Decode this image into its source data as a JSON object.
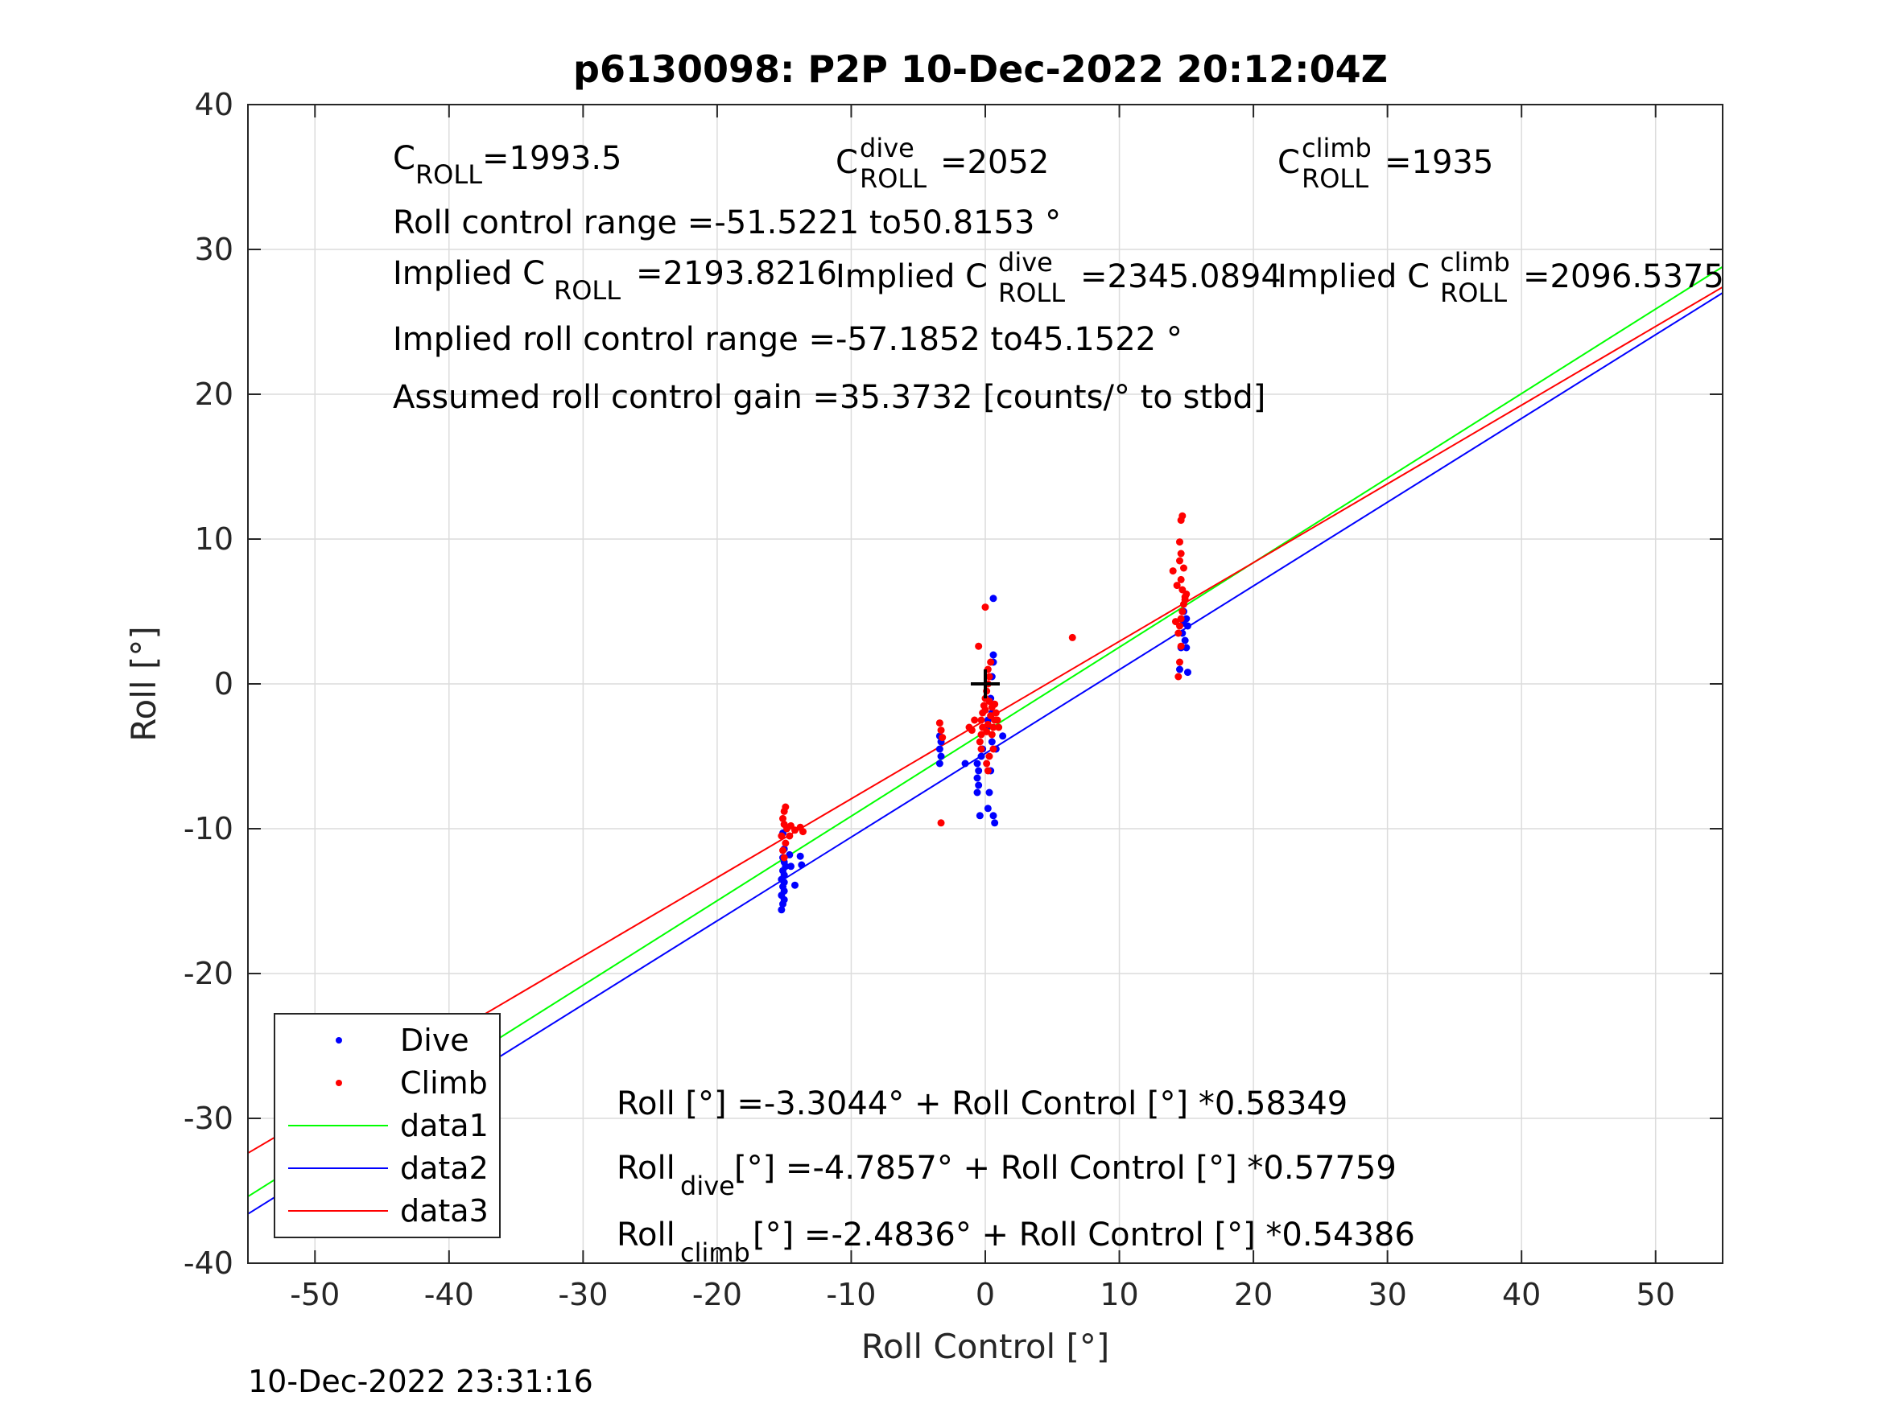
{
  "chart_data": {
    "type": "scatter",
    "title": "p6130098: P2P 10-Dec-2022 20:12:04Z",
    "xlabel": "Roll Control [°]",
    "ylabel": "Roll [°]",
    "xlim": [
      -55,
      55
    ],
    "ylim": [
      -40,
      40
    ],
    "xticks": [
      "-50",
      "-40",
      "-30",
      "-20",
      "-10",
      "0",
      "10",
      "20",
      "30",
      "40",
      "50"
    ],
    "yticks": [
      "40",
      "30",
      "20",
      "10",
      "0",
      "-10",
      "-20",
      "-30",
      "-40"
    ],
    "grid": true,
    "legend_position": "bottom-left",
    "colors": {
      "dive": "#0000ff",
      "climb": "#ff0000",
      "data1": "#00ff00",
      "data2": "#0000ff",
      "data3": "#ff0000",
      "marker": "#000000"
    },
    "series": [
      {
        "name": "Dive",
        "kind": "scatter",
        "color": "#0000ff",
        "points": [
          [
            -15.2,
            -15.6
          ],
          [
            -15.1,
            -15.2
          ],
          [
            -15.0,
            -14.9
          ],
          [
            -15.2,
            -14.6
          ],
          [
            -15.0,
            -14.3
          ],
          [
            -15.1,
            -14.0
          ],
          [
            -15.0,
            -13.7
          ],
          [
            -15.2,
            -13.5
          ],
          [
            -15.0,
            -13.2
          ],
          [
            -15.1,
            -12.9
          ],
          [
            -14.9,
            -12.6
          ],
          [
            -15.0,
            -12.3
          ],
          [
            -15.1,
            -12.0
          ],
          [
            -14.6,
            -11.8
          ],
          [
            -14.5,
            -12.6
          ],
          [
            -14.2,
            -13.9
          ],
          [
            -13.8,
            -11.9
          ],
          [
            -13.7,
            -12.5
          ],
          [
            -15.0,
            -11.4
          ],
          [
            -15.1,
            -10.3
          ],
          [
            -3.4,
            -5.5
          ],
          [
            -3.3,
            -5.0
          ],
          [
            -3.4,
            -4.5
          ],
          [
            -3.3,
            -4.0
          ],
          [
            -3.4,
            -3.6
          ],
          [
            -1.5,
            -5.5
          ],
          [
            -0.6,
            -7.5
          ],
          [
            -0.5,
            -7.0
          ],
          [
            -0.6,
            -6.5
          ],
          [
            -0.5,
            -6.0
          ],
          [
            -0.6,
            -5.5
          ],
          [
            -0.4,
            -9.1
          ],
          [
            -0.3,
            -5.0
          ],
          [
            -0.2,
            -4.5
          ],
          [
            0.2,
            -8.6
          ],
          [
            0.3,
            -7.5
          ],
          [
            0.4,
            -6.0
          ],
          [
            0.5,
            -4.0
          ],
          [
            0.5,
            -2.0
          ],
          [
            0.4,
            -1.0
          ],
          [
            0.5,
            0.5
          ],
          [
            0.6,
            1.5
          ],
          [
            0.6,
            2.0
          ],
          [
            0.6,
            5.9
          ],
          [
            0.7,
            -9.6
          ],
          [
            0.6,
            -9.1
          ],
          [
            1.3,
            -3.6
          ],
          [
            0.8,
            -4.5
          ],
          [
            0.1,
            -3.0
          ],
          [
            0.2,
            -2.5
          ],
          [
            14.5,
            1.0
          ],
          [
            14.6,
            2.5
          ],
          [
            14.7,
            3.5
          ],
          [
            14.8,
            4.2
          ],
          [
            14.9,
            3.0
          ],
          [
            15.0,
            2.5
          ],
          [
            15.1,
            0.8
          ],
          [
            15.1,
            4.0
          ],
          [
            15.0,
            4.5
          ],
          [
            14.8,
            5.0
          ]
        ]
      },
      {
        "name": "Climb",
        "kind": "scatter",
        "color": "#ff0000",
        "points": [
          [
            -15.0,
            -12.0
          ],
          [
            -15.1,
            -11.5
          ],
          [
            -14.9,
            -11.0
          ],
          [
            -15.2,
            -10.5
          ],
          [
            -14.8,
            -10.0
          ],
          [
            -15.0,
            -9.7
          ],
          [
            -14.5,
            -9.8
          ],
          [
            -14.2,
            -10.1
          ],
          [
            -13.8,
            -9.9
          ],
          [
            -13.6,
            -10.2
          ],
          [
            -15.0,
            -8.8
          ],
          [
            -14.9,
            -8.5
          ],
          [
            -15.1,
            -9.3
          ],
          [
            -14.6,
            -10.5
          ],
          [
            -3.4,
            -2.7
          ],
          [
            -3.3,
            -3.2
          ],
          [
            -3.2,
            -3.7
          ],
          [
            -3.3,
            -9.6
          ],
          [
            -0.5,
            2.6
          ],
          [
            0.0,
            5.3
          ],
          [
            -0.3,
            -4.5
          ],
          [
            -0.4,
            -4.0
          ],
          [
            -0.3,
            -3.5
          ],
          [
            -0.2,
            -3.0
          ],
          [
            -0.3,
            -2.5
          ],
          [
            -0.2,
            -2.0
          ],
          [
            -0.1,
            -1.5
          ],
          [
            0.0,
            -1.0
          ],
          [
            0.1,
            -0.5
          ],
          [
            0.2,
            0.0
          ],
          [
            0.3,
            0.5
          ],
          [
            0.2,
            1.0
          ],
          [
            0.4,
            1.5
          ],
          [
            0.3,
            -5.0
          ],
          [
            0.1,
            -5.5
          ],
          [
            0.2,
            -6.0
          ],
          [
            0.5,
            -3.5
          ],
          [
            0.6,
            -3.0
          ],
          [
            0.7,
            -2.5
          ],
          [
            0.8,
            -2.0
          ],
          [
            0.9,
            -2.5
          ],
          [
            1.0,
            -3.0
          ],
          [
            0.6,
            -4.5
          ],
          [
            -0.8,
            -2.5
          ],
          [
            -1.0,
            -3.2
          ],
          [
            -1.2,
            -3.0
          ],
          [
            0.0,
            -1.8
          ],
          [
            0.3,
            -1.2
          ],
          [
            0.4,
            -2.2
          ],
          [
            0.5,
            -1.6
          ],
          [
            0.2,
            -2.8
          ],
          [
            0.1,
            -3.3
          ],
          [
            0.7,
            -1.4
          ],
          [
            6.5,
            3.2
          ],
          [
            14.4,
            0.5
          ],
          [
            14.5,
            1.5
          ],
          [
            14.6,
            2.6
          ],
          [
            14.4,
            3.5
          ],
          [
            14.5,
            4.0
          ],
          [
            14.6,
            4.5
          ],
          [
            14.7,
            5.0
          ],
          [
            14.8,
            5.5
          ],
          [
            14.9,
            6.0
          ],
          [
            14.7,
            6.5
          ],
          [
            14.6,
            7.2
          ],
          [
            14.8,
            8.0
          ],
          [
            14.5,
            8.5
          ],
          [
            14.6,
            9.0
          ],
          [
            14.5,
            9.8
          ],
          [
            14.6,
            11.3
          ],
          [
            14.7,
            11.6
          ],
          [
            14.0,
            7.8
          ],
          [
            14.3,
            6.8
          ],
          [
            14.9,
            5.8
          ],
          [
            15.0,
            6.2
          ],
          [
            14.2,
            4.3
          ]
        ]
      },
      {
        "name": "data1",
        "kind": "line",
        "color": "#00ff00",
        "x": [
          -55,
          55
        ],
        "y": [
          -35.4,
          28.8
        ]
      },
      {
        "name": "data2",
        "kind": "line",
        "color": "#0000ff",
        "x": [
          -55,
          55
        ],
        "y": [
          -36.6,
          27.0
        ]
      },
      {
        "name": "data3",
        "kind": "line",
        "color": "#ff0000",
        "x": [
          -55,
          55
        ],
        "y": [
          -32.4,
          27.4
        ]
      }
    ],
    "marker": {
      "x": 0,
      "y": 0,
      "symbol": "+"
    },
    "annotations": {
      "c_roll": "=1993.5",
      "c_roll_dive": "=2052",
      "c_roll_climb": "=1935",
      "roll_control_range": "Roll control range =-51.5221 to50.8153 °",
      "implied_c_roll": "=2193.8216",
      "implied_c_roll_dive": "=2345.0894",
      "implied_c_roll_climb": "=2096.5375",
      "implied_range": "Implied roll control range =-57.1852 to45.1522 °",
      "assumed_gain": "Assumed roll control gain =35.3732 [counts/° to stbd]",
      "fit_all": "Roll [°] =-3.3044° + Roll Control [°] *0.58349",
      "fit_dive": " [°] =-4.7857° + Roll Control [°] *0.57759",
      "fit_climb": " [°] =-2.4836° + Roll Control [°] *0.54386"
    },
    "text_parts": {
      "c": "C",
      "roll_sub": "ROLL",
      "dive_sup": "dive",
      "climb_sup": "climb",
      "implied": "Implied C",
      "roll": "Roll",
      "dive_sub": "dive",
      "climb_sub": "climb"
    }
  },
  "timestamp": "10-Dec-2022 23:31:16"
}
